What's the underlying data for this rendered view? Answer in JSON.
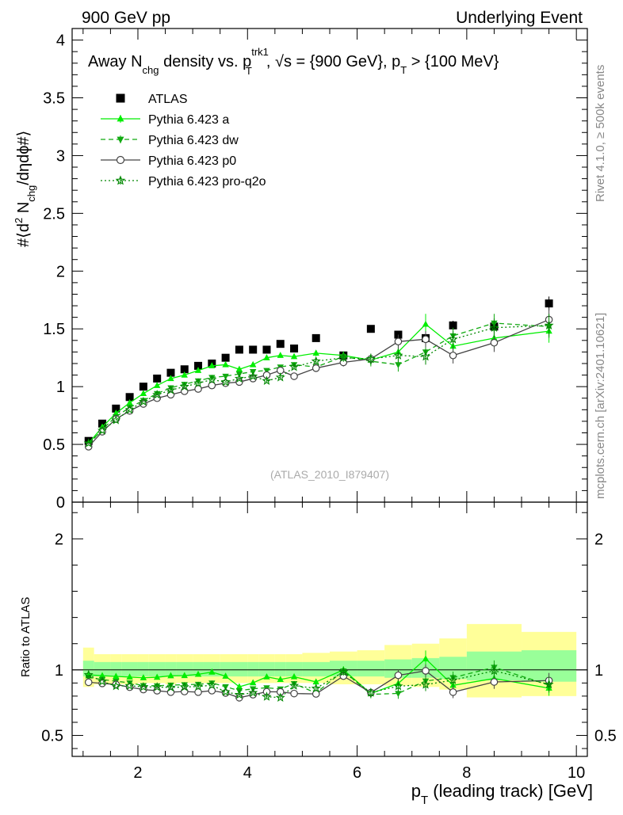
{
  "header": {
    "left": "900 GeV pp",
    "right": "Underlying Event"
  },
  "side_labels": {
    "right_top": "Rivet 4.1.0, ≥ 500k events",
    "right_bottom": "mcplots.cern.ch [arXiv:2401.10621]"
  },
  "plot_title": {
    "a": "Away N",
    "a_sub": "chg",
    "b": " density vs. p",
    "b_sup": "trk1",
    "b_sub": "T",
    "c": ", √s = {900 GeV}, p",
    "c_sub": "T",
    "d": " > {100 MeV}"
  },
  "ylabel_main": {
    "pre": "#⟨d",
    "sup": "2",
    "mid": " N",
    "sub": "chg",
    "post": "/dηdϕ#⟩"
  },
  "ylabel_ratio": "Ratio to ATLAS",
  "xlabel": {
    "p": "p",
    "sub": "T",
    "rest": " (leading track) [GeV]"
  },
  "watermark": "(ATLAS_2010_I879407)",
  "colors": {
    "atlas": "#000000",
    "pythia_a": "#00ee00",
    "pythia_dw": "#11aa11",
    "pythia_p0": "#444444",
    "pythia_proq2o": "#008800",
    "band_yellow": "#ffff99",
    "band_green": "#99ff99"
  },
  "chart_data": {
    "type": "scatter",
    "x": [
      1.1,
      1.35,
      1.6,
      1.85,
      2.1,
      2.35,
      2.6,
      2.85,
      3.1,
      3.35,
      3.6,
      3.85,
      4.1,
      4.35,
      4.6,
      4.85,
      5.25,
      5.75,
      6.25,
      6.75,
      7.25,
      7.75,
      8.5,
      9.5
    ],
    "xlim": [
      0.8,
      10.2
    ],
    "xticks": [
      2,
      4,
      6,
      8,
      10
    ],
    "xtick_labels": [
      "2",
      "4",
      "6",
      "8",
      "10"
    ],
    "main": {
      "ylim": [
        0,
        4.1
      ],
      "yticks": [
        0,
        0.5,
        1,
        1.5,
        2,
        2.5,
        3,
        3.5,
        4
      ],
      "ytick_labels": [
        "0",
        "0.5",
        "1",
        "1.5",
        "2",
        "2.5",
        "3",
        "3.5",
        "4"
      ]
    },
    "ratio": {
      "ylim": [
        0.34,
        2.28
      ],
      "yticks": [
        0.5,
        1,
        2
      ],
      "ytick_labels": [
        "0.5",
        "1",
        "2"
      ],
      "band_edges": [
        1.0,
        1.2,
        1.5,
        1.7,
        2.0,
        2.2,
        2.5,
        2.7,
        3.0,
        3.2,
        3.5,
        3.7,
        4.0,
        4.2,
        4.5,
        4.7,
        5.0,
        5.5,
        6.0,
        6.5,
        7.0,
        7.5,
        8.0,
        9.0,
        10.0
      ],
      "band_yellow": [
        [
          0.87,
          1.17
        ],
        [
          0.89,
          1.12
        ],
        [
          0.89,
          1.12
        ],
        [
          0.89,
          1.12
        ],
        [
          0.9,
          1.12
        ],
        [
          0.9,
          1.12
        ],
        [
          0.89,
          1.12
        ],
        [
          0.9,
          1.12
        ],
        [
          0.9,
          1.12
        ],
        [
          0.9,
          1.12
        ],
        [
          0.9,
          1.12
        ],
        [
          0.9,
          1.12
        ],
        [
          0.9,
          1.12
        ],
        [
          0.9,
          1.12
        ],
        [
          0.9,
          1.12
        ],
        [
          0.9,
          1.12
        ],
        [
          0.9,
          1.13
        ],
        [
          0.89,
          1.14
        ],
        [
          0.89,
          1.15
        ],
        [
          0.88,
          1.19
        ],
        [
          0.87,
          1.2
        ],
        [
          0.85,
          1.24
        ],
        [
          0.79,
          1.35
        ],
        [
          0.8,
          1.29
        ]
      ],
      "band_green": [
        [
          0.95,
          1.07
        ],
        [
          0.95,
          1.06
        ],
        [
          0.95,
          1.06
        ],
        [
          0.95,
          1.06
        ],
        [
          0.95,
          1.06
        ],
        [
          0.95,
          1.06
        ],
        [
          0.95,
          1.06
        ],
        [
          0.95,
          1.06
        ],
        [
          0.95,
          1.06
        ],
        [
          0.95,
          1.06
        ],
        [
          0.95,
          1.06
        ],
        [
          0.95,
          1.06
        ],
        [
          0.95,
          1.06
        ],
        [
          0.95,
          1.06
        ],
        [
          0.95,
          1.06
        ],
        [
          0.95,
          1.06
        ],
        [
          0.95,
          1.06
        ],
        [
          0.95,
          1.07
        ],
        [
          0.95,
          1.07
        ],
        [
          0.94,
          1.08
        ],
        [
          0.94,
          1.09
        ],
        [
          0.93,
          1.1
        ],
        [
          0.92,
          1.14
        ],
        [
          0.91,
          1.15
        ]
      ]
    },
    "legend": [
      "ATLAS",
      "Pythia 6.423 a",
      "Pythia 6.423 dw",
      "Pythia 6.423 p0",
      "Pythia 6.423 pro-q2o"
    ],
    "series": [
      {
        "name": "ATLAS",
        "key": "atlas",
        "marker": "square",
        "dash": "none",
        "values": [
          0.53,
          0.68,
          0.81,
          0.91,
          1.0,
          1.07,
          1.12,
          1.15,
          1.18,
          1.2,
          1.25,
          1.32,
          1.32,
          1.32,
          1.37,
          1.33,
          1.42,
          1.27,
          1.5,
          1.45,
          1.42,
          1.53,
          1.52,
          1.72
        ],
        "errors": [
          0.01,
          0.01,
          0.01,
          0.01,
          0.01,
          0.01,
          0.01,
          0.01,
          0.01,
          0.01,
          0.01,
          0.01,
          0.01,
          0.01,
          0.01,
          0.01,
          0.02,
          0.02,
          0.03,
          0.03,
          0.04,
          0.04,
          0.05,
          0.06
        ]
      },
      {
        "name": "Pythia 6.423 a",
        "key": "pythia_a",
        "marker": "triangle-up",
        "dash": "solid",
        "values": [
          0.51,
          0.65,
          0.77,
          0.86,
          0.94,
          1.01,
          1.07,
          1.1,
          1.14,
          1.18,
          1.19,
          1.15,
          1.19,
          1.25,
          1.27,
          1.26,
          1.29,
          1.27,
          1.23,
          1.3,
          1.54,
          1.35,
          1.42,
          1.48
        ],
        "errors": [
          0.005,
          0.005,
          0.006,
          0.006,
          0.007,
          0.007,
          0.008,
          0.009,
          0.01,
          0.01,
          0.012,
          0.013,
          0.014,
          0.016,
          0.018,
          0.02,
          0.025,
          0.035,
          0.045,
          0.06,
          0.09,
          0.08,
          0.08,
          0.1
        ]
      },
      {
        "name": "Pythia 6.423 dw",
        "key": "pythia_dw",
        "marker": "triangle-down",
        "dash": "dashed",
        "values": [
          0.5,
          0.63,
          0.74,
          0.82,
          0.88,
          0.94,
          0.99,
          1.02,
          1.05,
          1.08,
          1.09,
          1.11,
          1.13,
          1.14,
          1.17,
          1.19,
          1.17,
          1.26,
          1.22,
          1.19,
          1.3,
          1.44,
          1.55,
          1.52
        ],
        "errors": [
          0.005,
          0.005,
          0.006,
          0.006,
          0.007,
          0.007,
          0.008,
          0.009,
          0.01,
          0.01,
          0.012,
          0.013,
          0.014,
          0.016,
          0.018,
          0.02,
          0.025,
          0.035,
          0.045,
          0.06,
          0.07,
          0.07,
          0.08,
          0.1
        ]
      },
      {
        "name": "Pythia 6.423 p0",
        "key": "pythia_p0",
        "marker": "circle-open",
        "dash": "solid",
        "values": [
          0.48,
          0.61,
          0.72,
          0.79,
          0.85,
          0.9,
          0.93,
          0.96,
          0.98,
          1.01,
          1.03,
          1.04,
          1.07,
          1.1,
          1.14,
          1.09,
          1.16,
          1.21,
          1.24,
          1.39,
          1.41,
          1.27,
          1.38,
          1.58
        ],
        "errors": [
          0.005,
          0.005,
          0.006,
          0.006,
          0.007,
          0.007,
          0.008,
          0.009,
          0.01,
          0.01,
          0.012,
          0.013,
          0.014,
          0.016,
          0.018,
          0.02,
          0.025,
          0.035,
          0.045,
          0.06,
          0.07,
          0.07,
          0.08,
          0.1
        ]
      },
      {
        "name": "Pythia 6.423 pro-q2o",
        "key": "pythia_proq2o",
        "marker": "star",
        "dash": "dotted",
        "values": [
          0.51,
          0.62,
          0.71,
          0.8,
          0.87,
          0.93,
          0.97,
          1.0,
          1.03,
          1.06,
          1.04,
          1.07,
          1.09,
          1.05,
          1.08,
          1.17,
          1.22,
          1.25,
          1.24,
          1.27,
          1.26,
          1.41,
          1.51,
          1.53
        ],
        "errors": [
          0.005,
          0.005,
          0.006,
          0.006,
          0.007,
          0.007,
          0.008,
          0.009,
          0.01,
          0.01,
          0.012,
          0.013,
          0.014,
          0.016,
          0.018,
          0.02,
          0.025,
          0.035,
          0.045,
          0.06,
          0.07,
          0.07,
          0.08,
          0.1
        ]
      }
    ]
  }
}
